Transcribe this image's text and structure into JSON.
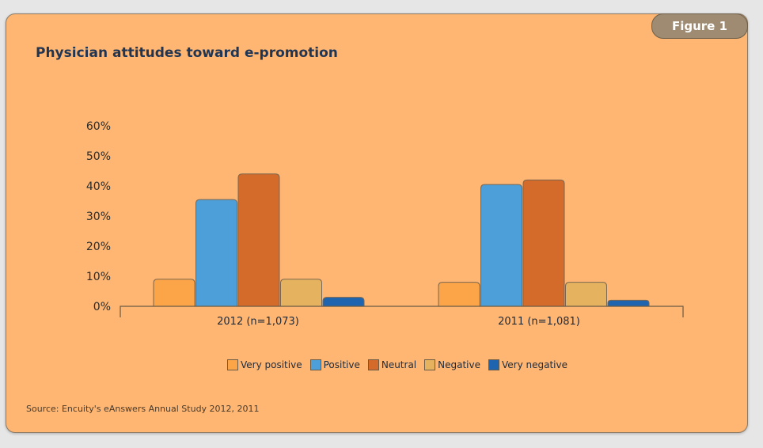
{
  "badge": "Figure 1",
  "source": "Source: Encuity's eAnswers Annual Study 2012, 2011",
  "colors": {
    "Very positive": "#fba448",
    "Positive": "#4d9fd9",
    "Neutral": "#d46b2a",
    "Negative": "#e5b35f",
    "Very negative": "#1e64ae"
  },
  "chart_data": {
    "type": "bar",
    "title": "Physician attitudes toward e-promotion",
    "categories": [
      "2012 (n=1,073)",
      "2011 (n=1,081)"
    ],
    "series": [
      {
        "name": "Very positive",
        "values": [
          9,
          8
        ]
      },
      {
        "name": "Positive",
        "values": [
          35.5,
          40.5
        ]
      },
      {
        "name": "Neutral",
        "values": [
          44,
          42
        ]
      },
      {
        "name": "Negative",
        "values": [
          9,
          8
        ]
      },
      {
        "name": "Very negative",
        "values": [
          3,
          2
        ]
      }
    ],
    "yticks": [
      "0%",
      "10%",
      "20%",
      "30%",
      "40%",
      "50%",
      "60%"
    ],
    "ylim": [
      0,
      60
    ],
    "legend_position": "bottom",
    "grid": false
  }
}
